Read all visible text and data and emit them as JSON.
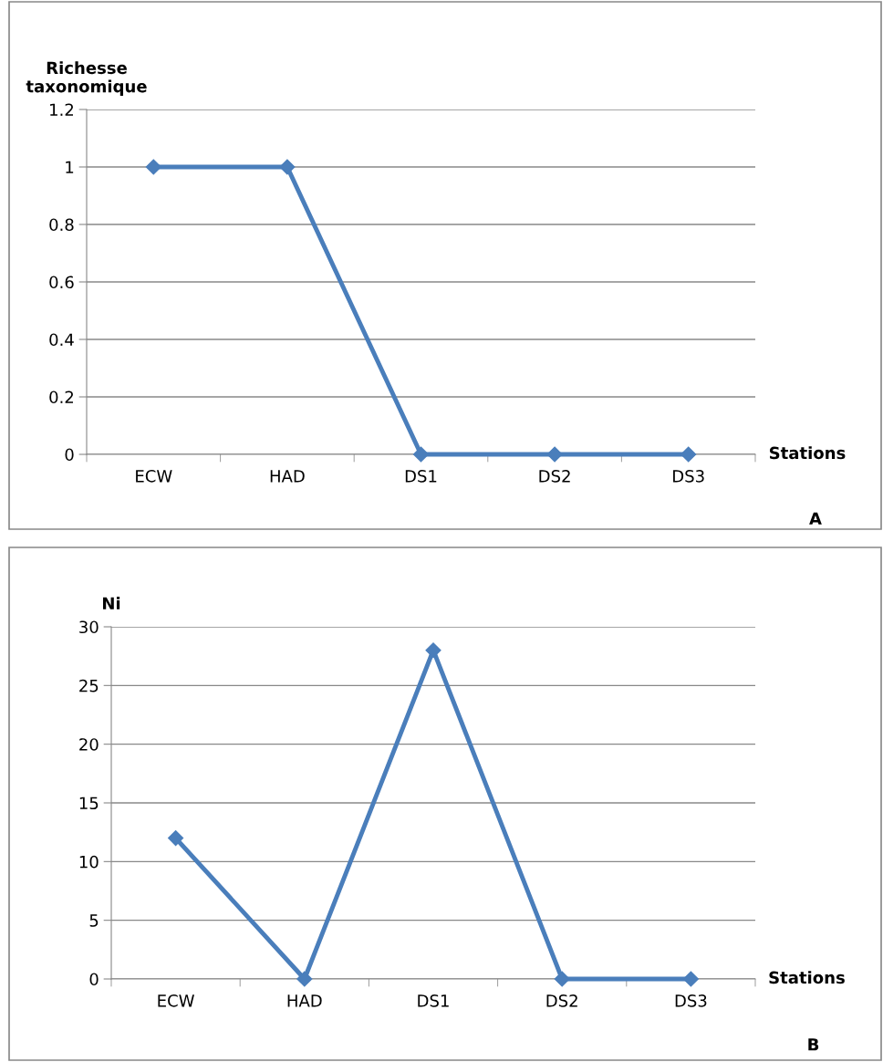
{
  "chart_data": [
    {
      "type": "line",
      "categories": [
        "ECW",
        "HAD",
        "DS1",
        "DS2",
        "DS3"
      ],
      "ylabel": "Richesse taxonomique",
      "xlabel": "Stations",
      "annotations": [
        "A"
      ],
      "series": [
        {
          "color": "#4a7ebb",
          "values": [
            1,
            1,
            0,
            0,
            0
          ]
        }
      ],
      "ylim": [
        0,
        1.2
      ],
      "yticks": [
        0,
        0.2,
        0.4,
        0.6,
        0.8,
        1,
        1.2
      ],
      "grid": "y",
      "marker": "diamond",
      "line_style": "solid",
      "legend": false
    },
    {
      "type": "line",
      "categories": [
        "ECW",
        "HAD",
        "DS1",
        "DS2",
        "DS3"
      ],
      "ylabel": "Ni",
      "xlabel": "Stations",
      "annotations": [
        "B"
      ],
      "series": [
        {
          "color": "#4a7ebb",
          "values": [
            12,
            0,
            28,
            0,
            0
          ]
        }
      ],
      "ylim": [
        0,
        30
      ],
      "yticks": [
        0,
        5,
        10,
        15,
        20,
        25,
        30
      ],
      "grid": "y",
      "marker": "diamond",
      "line_style": "solid",
      "legend": false
    }
  ]
}
